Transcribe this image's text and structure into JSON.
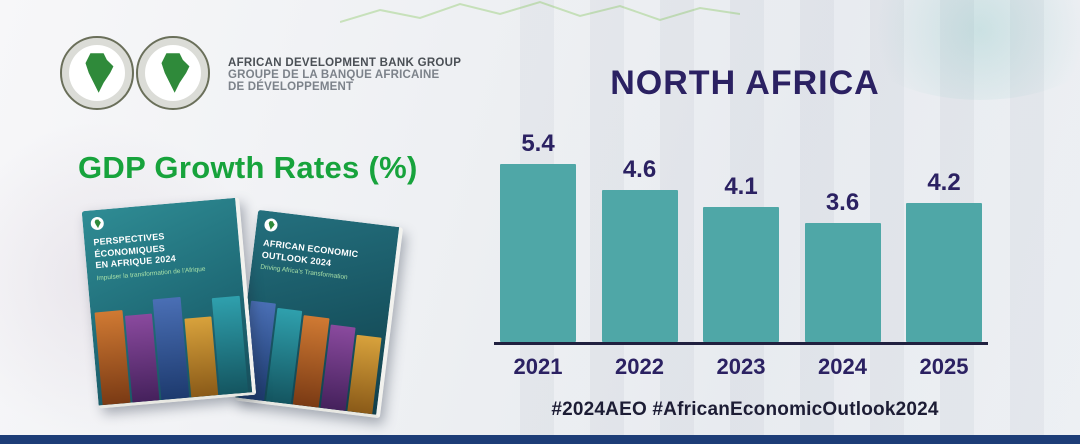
{
  "colors": {
    "bar": "#4fa7a7",
    "navy": "#2b2162",
    "green_title": "#17a33c",
    "bottom_bar": "#1d3d77"
  },
  "logo_block": {
    "line1": "AFRICAN DEVELOPMENT BANK GROUP",
    "line2": "GROUPE DE LA BANQUE AFRICAINE",
    "line3": "DE DÉVELOPPEMENT"
  },
  "gdp_title": "GDP Growth Rates (%)",
  "hashtags": "#2024AEO #AfricanEconomicOutlook2024",
  "books": {
    "left": {
      "title_line1": "PERSPECTIVES ÉCONOMIQUES",
      "title_line2": "EN AFRIQUE 2024",
      "subtitle": "Impulser la transformation de l'Afrique"
    },
    "right": {
      "title_line1": "AFRICAN ECONOMIC",
      "title_line2": "OUTLOOK 2024",
      "subtitle": "Driving Africa's Transformation"
    }
  },
  "chart_data": {
    "type": "bar",
    "title": "NORTH AFRICA",
    "categories": [
      "2021",
      "2022",
      "2023",
      "2024",
      "2025"
    ],
    "values": [
      5.4,
      4.6,
      4.1,
      3.6,
      4.2
    ],
    "ylim": [
      0,
      6
    ],
    "bar_color": "#4fa7a7",
    "value_label_color": "#2b2162",
    "axis_color": "#20203f",
    "grid": false,
    "legend": "none"
  }
}
